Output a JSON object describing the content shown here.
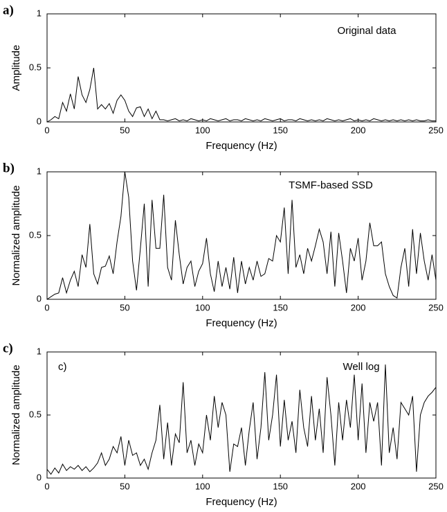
{
  "chart_data": [
    {
      "type": "line",
      "panel_label": "a)",
      "annotation": "Original data",
      "xlabel": "Frequency (Hz)",
      "ylabel": "Amplitude",
      "color": "#000000",
      "xlim": [
        0,
        250
      ],
      "ylim": [
        0,
        1
      ],
      "xticks": [
        0,
        50,
        100,
        150,
        200,
        250
      ],
      "yticks": [
        0,
        0.5,
        1
      ],
      "x": [
        0,
        2.5,
        5,
        7.5,
        10,
        12.5,
        15,
        17.5,
        20,
        22.5,
        25,
        27.5,
        30,
        32.5,
        35,
        37.5,
        40,
        42.5,
        45,
        47.5,
        50,
        52.5,
        55,
        57.5,
        60,
        62.5,
        65,
        67.5,
        70,
        72.5,
        75,
        77.5,
        80,
        82.5,
        85,
        87.5,
        90,
        92.5,
        95,
        97.5,
        100,
        102.5,
        105,
        107.5,
        110,
        112.5,
        115,
        117.5,
        120,
        122.5,
        125,
        127.5,
        130,
        132.5,
        135,
        137.5,
        140,
        142.5,
        145,
        147.5,
        150,
        152.5,
        155,
        157.5,
        160,
        162.5,
        165,
        167.5,
        170,
        172.5,
        175,
        177.5,
        180,
        182.5,
        185,
        187.5,
        190,
        192.5,
        195,
        197.5,
        200,
        202.5,
        205,
        207.5,
        210,
        212.5,
        215,
        217.5,
        220,
        222.5,
        225,
        227.5,
        230,
        232.5,
        235,
        237.5,
        240,
        242.5,
        245,
        247.5,
        250
      ],
      "values": [
        0,
        0.02,
        0.05,
        0.03,
        0.18,
        0.1,
        0.26,
        0.12,
        0.42,
        0.25,
        0.18,
        0.3,
        0.5,
        0.12,
        0.16,
        0.12,
        0.17,
        0.08,
        0.2,
        0.25,
        0.2,
        0.1,
        0.05,
        0.13,
        0.14,
        0.05,
        0.12,
        0.03,
        0.1,
        0.02,
        0.02,
        0.01,
        0.02,
        0.03,
        0.01,
        0.02,
        0.01,
        0.03,
        0.02,
        0.01,
        0.02,
        0.01,
        0.03,
        0.02,
        0.01,
        0.02,
        0.03,
        0.01,
        0.02,
        0.02,
        0.01,
        0.03,
        0.02,
        0.01,
        0.02,
        0.01,
        0.03,
        0.02,
        0.01,
        0.02,
        0.03,
        0.01,
        0.02,
        0.02,
        0.01,
        0.03,
        0.02,
        0.01,
        0.02,
        0.01,
        0.02,
        0.01,
        0.03,
        0.02,
        0.01,
        0.02,
        0.01,
        0.02,
        0.03,
        0.01,
        0.02,
        0.01,
        0.02,
        0.01,
        0.03,
        0.02,
        0.01,
        0.02,
        0.01,
        0.02,
        0.01,
        0.02,
        0.01,
        0.02,
        0.01,
        0.02,
        0.01,
        0.01,
        0.02,
        0.01,
        0.01
      ]
    },
    {
      "type": "line",
      "panel_label": "b)",
      "annotation": "TSMF-based SSD",
      "xlabel": "Frequency (Hz)",
      "ylabel": "Normalized amplitude",
      "color": "#000000",
      "xlim": [
        0,
        250
      ],
      "ylim": [
        0,
        1
      ],
      "xticks": [
        0,
        50,
        100,
        150,
        200,
        250
      ],
      "yticks": [
        0,
        0.5,
        1
      ],
      "x": [
        0,
        2.5,
        5,
        7.5,
        10,
        12.5,
        15,
        17.5,
        20,
        22.5,
        25,
        27.5,
        30,
        32.5,
        35,
        37.5,
        40,
        42.5,
        45,
        47.5,
        50,
        52.5,
        55,
        57.5,
        60,
        62.5,
        65,
        67.5,
        70,
        72.5,
        75,
        77.5,
        80,
        82.5,
        85,
        87.5,
        90,
        92.5,
        95,
        97.5,
        100,
        102.5,
        105,
        107.5,
        110,
        112.5,
        115,
        117.5,
        120,
        122.5,
        125,
        127.5,
        130,
        132.5,
        135,
        137.5,
        140,
        142.5,
        145,
        147.5,
        150,
        152.5,
        155,
        157.5,
        160,
        162.5,
        165,
        167.5,
        170,
        172.5,
        175,
        177.5,
        180,
        182.5,
        185,
        187.5,
        190,
        192.5,
        195,
        197.5,
        200,
        202.5,
        205,
        207.5,
        210,
        212.5,
        215,
        217.5,
        220,
        222.5,
        225,
        227.5,
        230,
        232.5,
        235,
        237.5,
        240,
        242.5,
        245,
        247.5,
        250
      ],
      "values": [
        0,
        0.02,
        0.04,
        0.05,
        0.17,
        0.05,
        0.15,
        0.22,
        0.1,
        0.35,
        0.25,
        0.59,
        0.2,
        0.12,
        0.25,
        0.26,
        0.34,
        0.2,
        0.45,
        0.65,
        1,
        0.8,
        0.3,
        0.07,
        0.4,
        0.75,
        0.1,
        0.78,
        0.4,
        0.4,
        0.82,
        0.25,
        0.15,
        0.62,
        0.35,
        0.12,
        0.25,
        0.3,
        0.1,
        0.22,
        0.28,
        0.48,
        0.2,
        0.06,
        0.3,
        0.1,
        0.25,
        0.08,
        0.33,
        0.05,
        0.3,
        0.12,
        0.25,
        0.15,
        0.3,
        0.18,
        0.2,
        0.32,
        0.3,
        0.5,
        0.45,
        0.72,
        0.2,
        0.78,
        0.25,
        0.35,
        0.2,
        0.4,
        0.3,
        0.42,
        0.55,
        0.45,
        0.2,
        0.53,
        0.1,
        0.52,
        0.3,
        0.05,
        0.4,
        0.3,
        0.48,
        0.15,
        0.3,
        0.6,
        0.42,
        0.42,
        0.45,
        0.2,
        0.1,
        0.03,
        0.01,
        0.25,
        0.4,
        0.1,
        0.55,
        0.2,
        0.52,
        0.3,
        0.15,
        0.35,
        0.15
      ]
    },
    {
      "type": "line",
      "panel_label": "c)",
      "inset_label": "c)",
      "annotation": "Well log",
      "xlabel": "Frequency (Hz)",
      "ylabel": "Normalized amplitude",
      "color": "#000000",
      "xlim": [
        0,
        250
      ],
      "ylim": [
        0,
        1
      ],
      "xticks": [
        0,
        50,
        100,
        150,
        200,
        250
      ],
      "yticks": [
        0,
        0.5,
        1
      ],
      "x": [
        0,
        2.5,
        5,
        7.5,
        10,
        12.5,
        15,
        17.5,
        20,
        22.5,
        25,
        27.5,
        30,
        32.5,
        35,
        37.5,
        40,
        42.5,
        45,
        47.5,
        50,
        52.5,
        55,
        57.5,
        60,
        62.5,
        65,
        67.5,
        70,
        72.5,
        75,
        77.5,
        80,
        82.5,
        85,
        87.5,
        90,
        92.5,
        95,
        97.5,
        100,
        102.5,
        105,
        107.5,
        110,
        112.5,
        115,
        117.5,
        120,
        122.5,
        125,
        127.5,
        130,
        132.5,
        135,
        137.5,
        140,
        142.5,
        145,
        147.5,
        150,
        152.5,
        155,
        157.5,
        160,
        162.5,
        165,
        167.5,
        170,
        172.5,
        175,
        177.5,
        180,
        182.5,
        185,
        187.5,
        190,
        192.5,
        195,
        197.5,
        200,
        202.5,
        205,
        207.5,
        210,
        212.5,
        215,
        217.5,
        220,
        222.5,
        225,
        227.5,
        230,
        232.5,
        235,
        237.5,
        240,
        242.5,
        245,
        247.5,
        250
      ],
      "values": [
        0.07,
        0.03,
        0.08,
        0.04,
        0.11,
        0.06,
        0.09,
        0.07,
        0.1,
        0.06,
        0.09,
        0.05,
        0.08,
        0.12,
        0.2,
        0.1,
        0.15,
        0.25,
        0.2,
        0.33,
        0.1,
        0.3,
        0.18,
        0.2,
        0.1,
        0.15,
        0.07,
        0.2,
        0.3,
        0.58,
        0.15,
        0.44,
        0.1,
        0.35,
        0.28,
        0.76,
        0.2,
        0.3,
        0.1,
        0.27,
        0.2,
        0.5,
        0.3,
        0.65,
        0.4,
        0.6,
        0.5,
        0.05,
        0.27,
        0.25,
        0.4,
        0.1,
        0.38,
        0.6,
        0.15,
        0.4,
        0.84,
        0.3,
        0.5,
        0.82,
        0.25,
        0.62,
        0.3,
        0.45,
        0.2,
        0.7,
        0.4,
        0.25,
        0.65,
        0.3,
        0.55,
        0.2,
        0.8,
        0.5,
        0.1,
        0.6,
        0.3,
        0.62,
        0.4,
        0.82,
        0.3,
        0.75,
        0.2,
        0.6,
        0.45,
        0.6,
        0.1,
        0.9,
        0.2,
        0.4,
        0.15,
        0.6,
        0.55,
        0.5,
        0.65,
        0.05,
        0.5,
        0.6,
        0.65,
        0.68,
        0.72
      ]
    }
  ]
}
